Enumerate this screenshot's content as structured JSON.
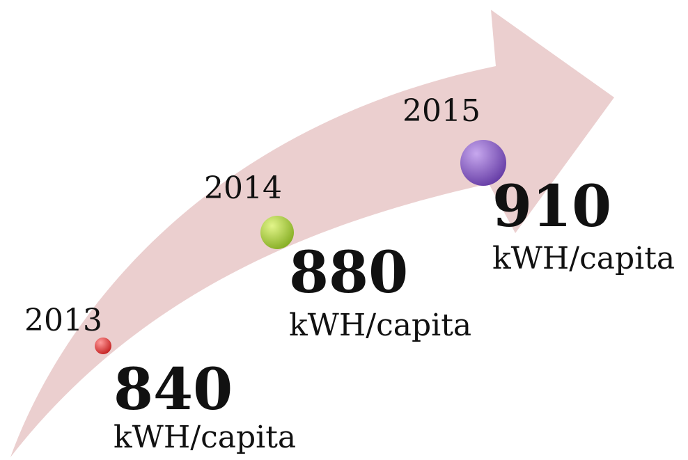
{
  "milestones": [
    {
      "year": "2013",
      "value": 840,
      "unit": "kWH/capita"
    },
    {
      "year": "2014",
      "value": 880,
      "unit": "kWH/capita"
    },
    {
      "year": "2015",
      "value": 910,
      "unit": "kWH/capita"
    }
  ]
}
